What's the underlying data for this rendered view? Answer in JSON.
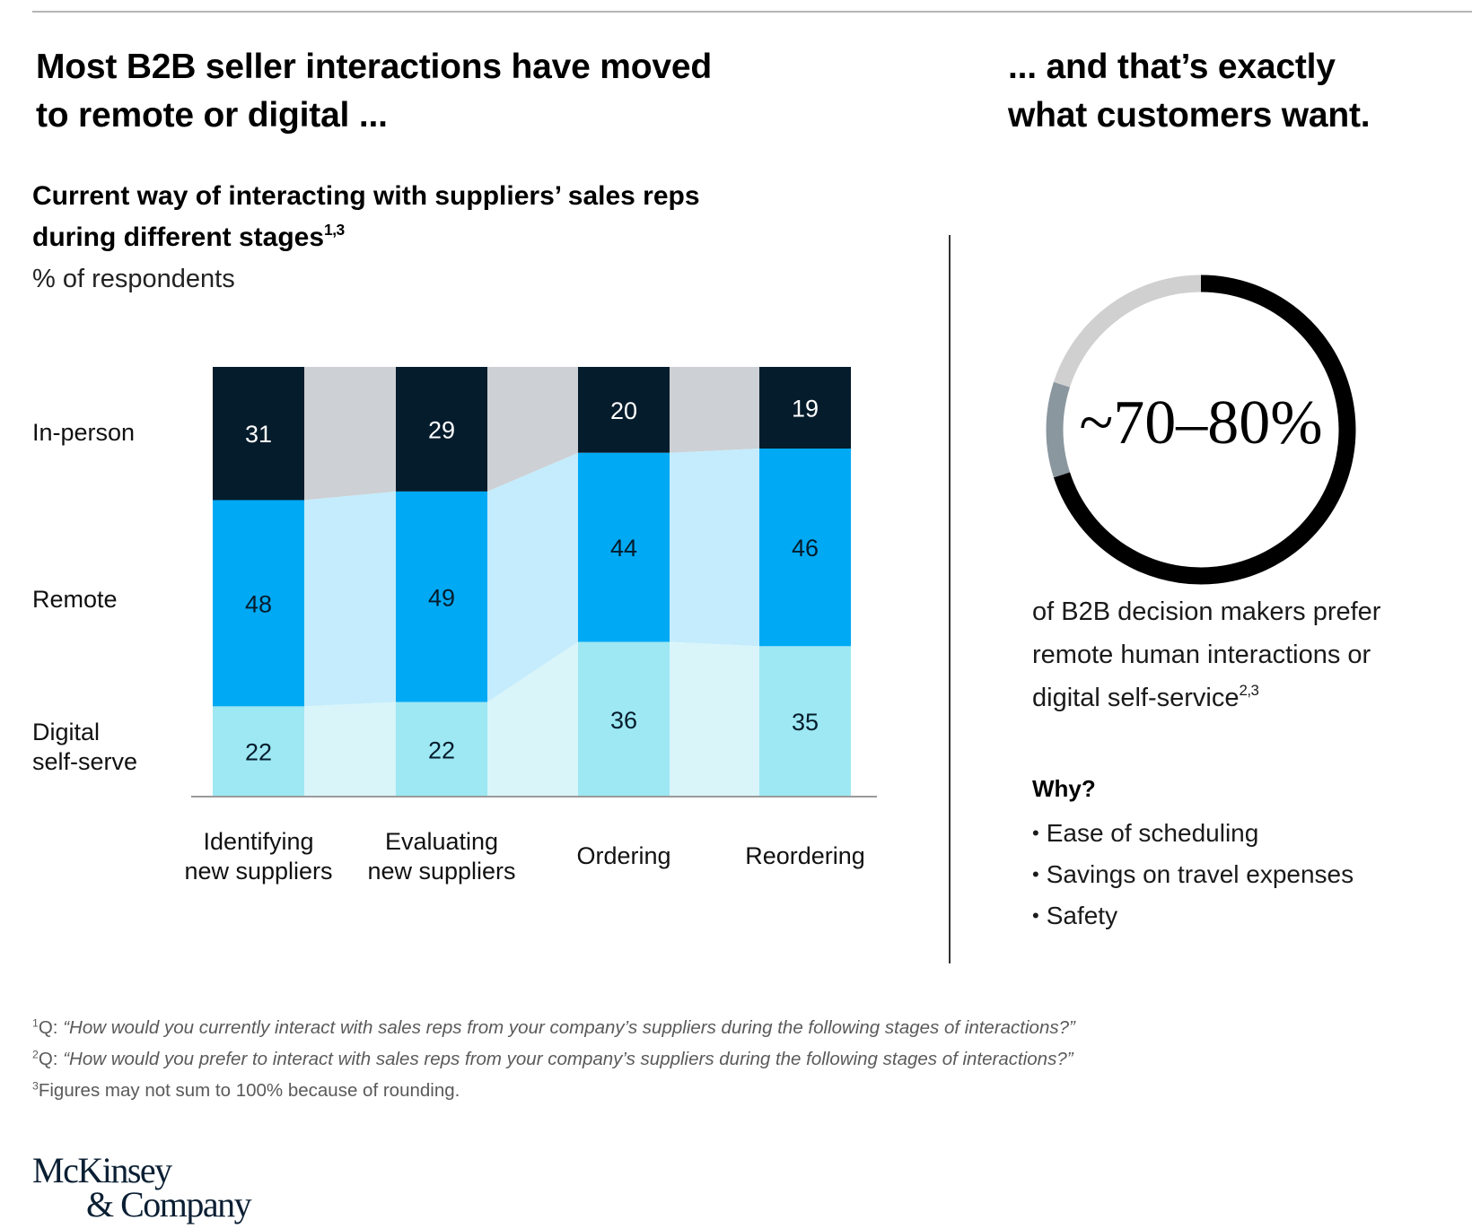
{
  "header": {
    "left_title_line1": "Most B2B seller interactions have moved",
    "left_title_line2": "to remote or digital ...",
    "right_title_line1": "... and that’s exactly",
    "right_title_line2": "what customers want."
  },
  "chart_section": {
    "subtitle_line1": "Current way of interacting with suppliers’ sales reps",
    "subtitle_line2": "during different stages",
    "subtitle_footnote_ref": "1,3",
    "unit_label": "% of respondents"
  },
  "chart_data": [
    {
      "type": "bar",
      "stacked": true,
      "orientation": "vertical",
      "title": "Current way of interacting with suppliers’ sales reps during different stages",
      "ylabel": "% of respondents",
      "xlabel": "",
      "ylim": [
        0,
        100
      ],
      "grid": false,
      "legend": "left (row labels)",
      "categories": [
        [
          "Identifying",
          "new suppliers"
        ],
        [
          "Evaluating",
          "new suppliers"
        ],
        [
          "Ordering"
        ],
        [
          "Reordering"
        ]
      ],
      "series": [
        {
          "name": "In-person",
          "label_lines": [
            "In-person"
          ],
          "values": [
            31,
            29,
            20,
            19
          ],
          "color": "#051c2c",
          "flow_color": "#cdd0d4",
          "text_color": "#ffffff"
        },
        {
          "name": "Remote",
          "label_lines": [
            "Remote"
          ],
          "values": [
            48,
            49,
            44,
            46
          ],
          "color": "#00a9f4",
          "flow_color": "#c4ecfc",
          "text_color": "#051c2c"
        },
        {
          "name": "Digital self-serve",
          "label_lines": [
            "Digital",
            "self-serve"
          ],
          "values": [
            22,
            22,
            36,
            35
          ],
          "color": "#9de8f3",
          "flow_color": "#d9f5fa",
          "text_color": "#051c2c"
        }
      ],
      "stack_order": "top-to-bottom: In-person, Remote, Digital self-serve"
    },
    {
      "type": "pie",
      "variant": "donut",
      "title": "~70–80%",
      "segments": [
        {
          "name": "prefer remote or digital (lower bound)",
          "value": 70,
          "color": "#000000"
        },
        {
          "name": "uncertainty range",
          "value": 10,
          "color": "#8a979f"
        },
        {
          "name": "remainder",
          "value": 20,
          "color": "#d0d0d0"
        }
      ],
      "center_label": "~70–80%"
    }
  ],
  "right_section": {
    "body_line1": "of B2B decision makers prefer",
    "body_line2": "remote human interactions or",
    "body_line3": "digital self-service",
    "body_footnote_ref": "2,3",
    "why_heading": "Why?",
    "reasons": [
      "Ease of scheduling",
      "Savings on travel expenses",
      "Safety"
    ]
  },
  "footnotes": [
    {
      "marker": "1",
      "prefix": "Q: ",
      "text": "“How would you currently interact with sales reps from your company’s suppliers during the following stages of interactions?”",
      "italic": true
    },
    {
      "marker": "2",
      "prefix": "Q: ",
      "text": "“How would you prefer to interact with sales reps from your company’s suppliers during the following stages of interactions?”",
      "italic": true
    },
    {
      "marker": "3",
      "prefix": "",
      "text": "Figures may not sum to 100% because of rounding.",
      "italic": false
    }
  ],
  "logo": {
    "line1": "McKinsey",
    "line2": "& Company"
  }
}
